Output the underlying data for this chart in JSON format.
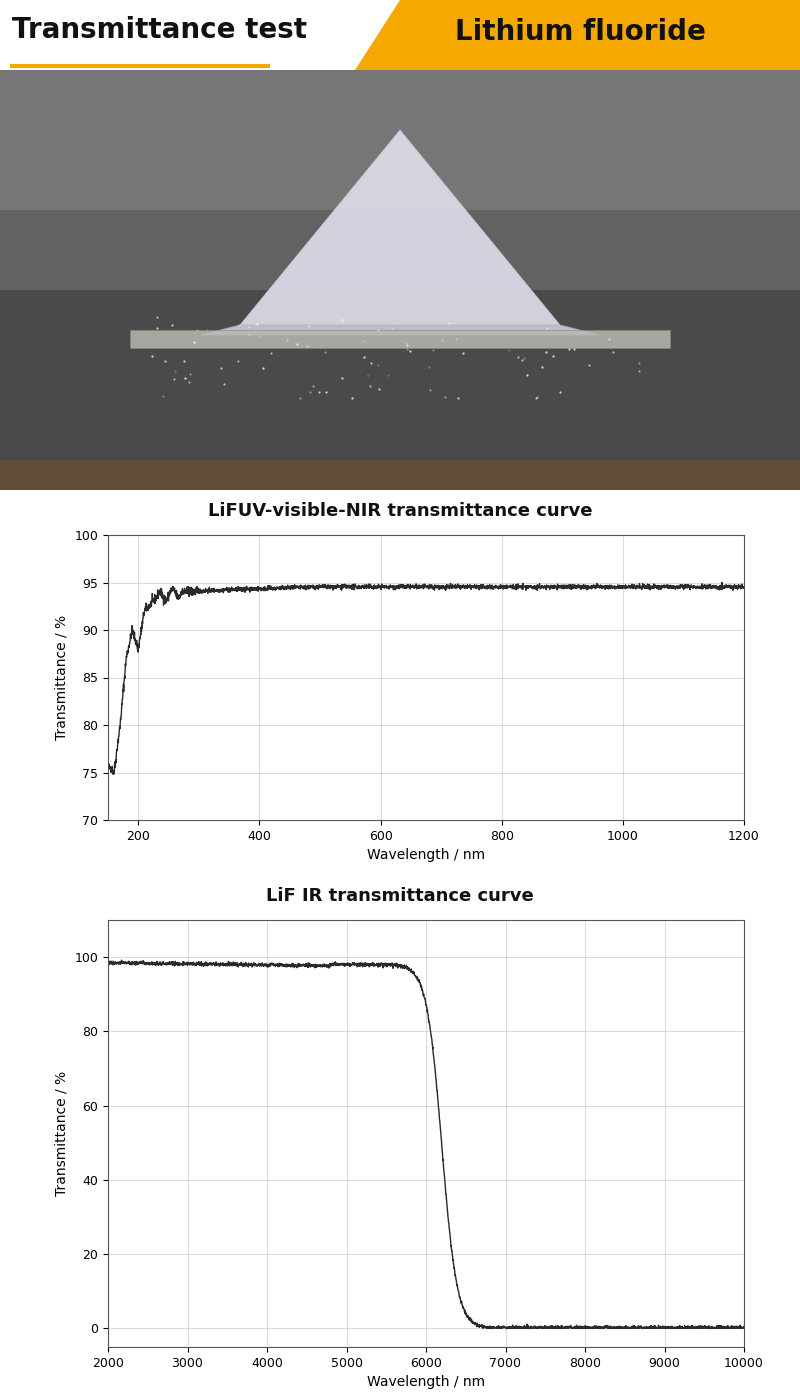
{
  "title_left": "Transmittance test",
  "title_right": "Lithium fluoride",
  "header_orange": "#F5A800",
  "bg_color": "#ffffff",
  "uv_title": "LiFUV-visible-NIR transmittance curve",
  "uv_xlabel": "Wavelength / nm",
  "uv_ylabel": "Transmittance / %",
  "uv_xlim": [
    150,
    1200
  ],
  "uv_ylim": [
    70,
    100
  ],
  "uv_yticks": [
    70,
    75,
    80,
    85,
    90,
    95,
    100
  ],
  "uv_xticks": [
    200,
    400,
    600,
    800,
    1000,
    1200
  ],
  "ir_title": "LiF IR transmittance curve",
  "ir_xlabel": "Wavelength / nm",
  "ir_ylabel": "Transmittance / %",
  "ir_xlim": [
    2000,
    10000
  ],
  "ir_ylim": [
    -5,
    110
  ],
  "ir_yticks": [
    0,
    20,
    40,
    60,
    80,
    100
  ],
  "ir_xticks": [
    2000,
    3000,
    4000,
    5000,
    6000,
    7000,
    8000,
    9000,
    10000
  ],
  "curve_color": "#2a2a2a",
  "curve_linewidth": 1.0,
  "grid_color": "#cccccc",
  "grid_alpha": 1.0,
  "photo_bg_color": "#7a7a7a",
  "photo_dark_color": "#3a3a3a",
  "photo_floor_color": "#555555",
  "crystal_color": "#e0e0e8",
  "ruler_color": "#b0b0b0"
}
